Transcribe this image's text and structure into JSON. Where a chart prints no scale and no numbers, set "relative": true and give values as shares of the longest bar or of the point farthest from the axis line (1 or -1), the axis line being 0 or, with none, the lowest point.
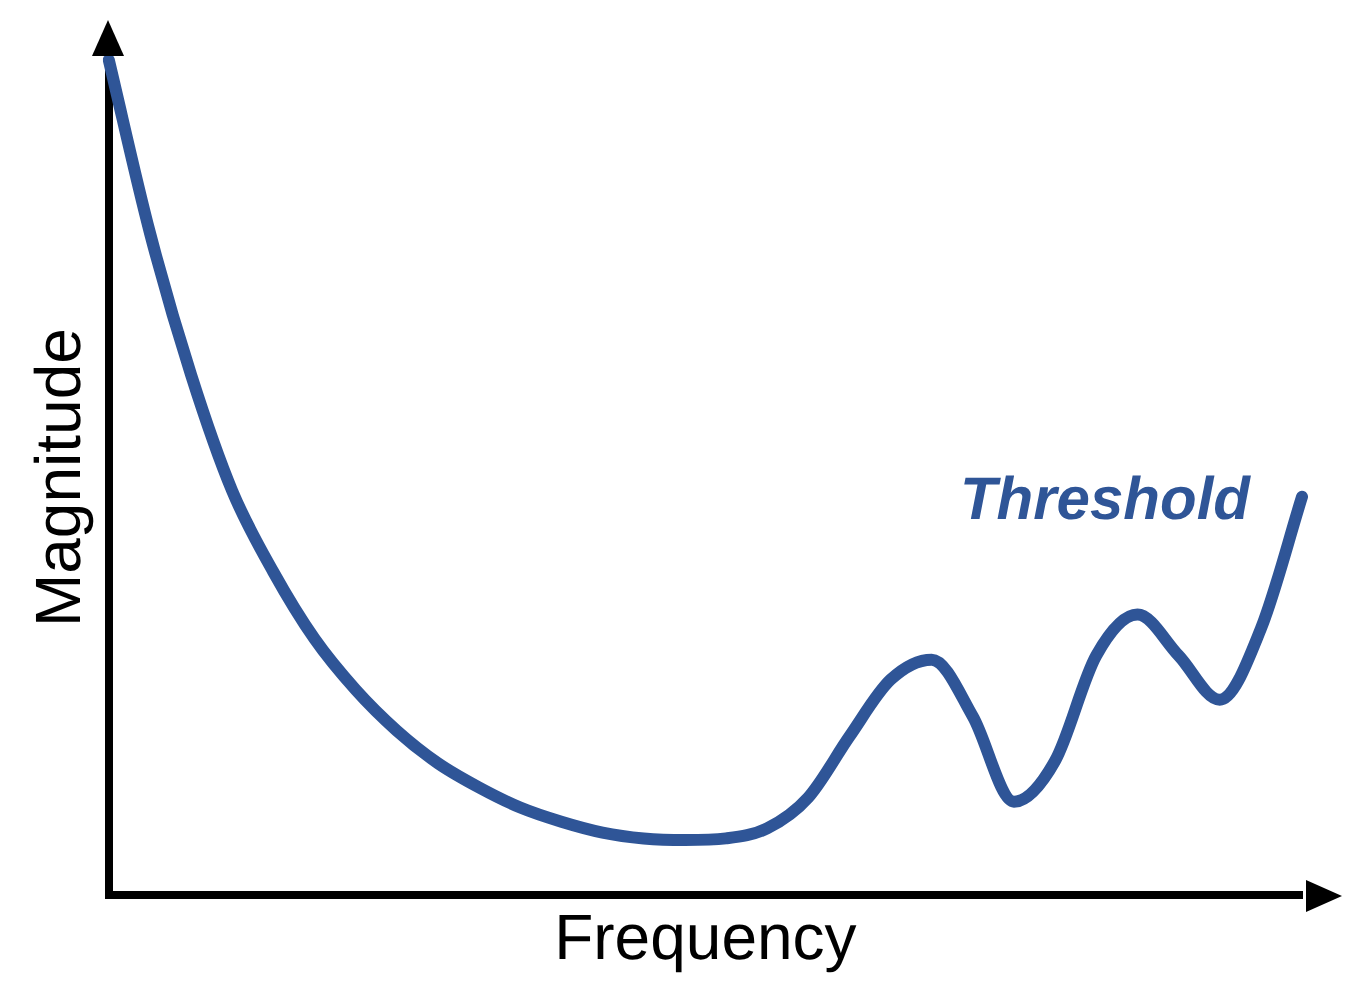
{
  "chart_data": {
    "type": "line",
    "relative": true,
    "xlabel": "Frequency",
    "ylabel": "Magnitude",
    "annotations": [
      "Threshold"
    ],
    "categories": [
      null,
      null,
      null,
      null,
      null,
      null,
      null,
      null,
      null,
      null,
      null,
      null,
      null,
      null,
      null,
      null,
      null,
      null,
      null,
      null,
      null,
      null,
      null,
      null,
      null,
      null,
      null,
      null,
      null,
      null
    ],
    "series": [
      {
        "color": "#2f5597",
        "values": [
          1.0,
          0.793,
          0.623,
          0.484,
          0.387,
          0.307,
          0.246,
          0.197,
          0.158,
          0.129,
          0.105,
          0.088,
          0.075,
          0.068,
          0.066,
          0.068,
          0.08,
          0.117,
          0.19,
          0.258,
          0.282,
          0.214,
          0.112,
          0.161,
          0.287,
          0.336,
          0.287,
          0.234,
          0.319,
          0.477
        ]
      }
    ]
  }
}
